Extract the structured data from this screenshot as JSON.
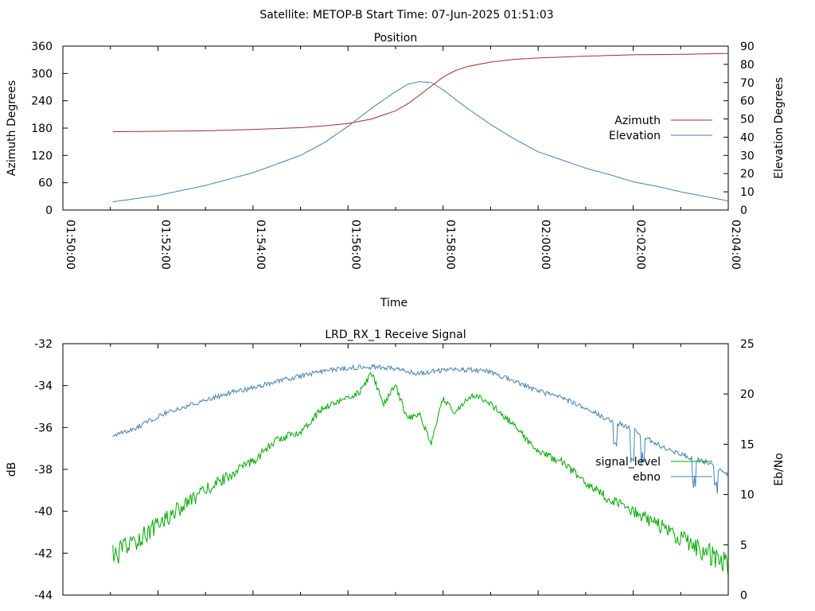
{
  "suptitle": "Satellite: METOP-B    Start Time: 07-Jun-2025 01:51:03",
  "colors": {
    "azimuth": "#a52a2a",
    "elevation": "#4682b4",
    "signal_level": "#00aa00",
    "ebno": "#4682b4"
  },
  "chart_data": [
    {
      "type": "line",
      "title": "Position",
      "xlabel": "Time",
      "ylabel": "Azimuth Degrees",
      "y2label": "Elevation Degrees",
      "xlim": [
        "01:50:00",
        "02:04:00"
      ],
      "ylim": [
        0,
        360
      ],
      "y2lim": [
        0,
        90
      ],
      "xticks": [
        "01:50:00",
        "01:52:00",
        "01:54:00",
        "01:56:00",
        "01:58:00",
        "02:00:00",
        "02:02:00",
        "02:04:00"
      ],
      "yticks": [
        "0",
        "60",
        "120",
        "180",
        "240",
        "300",
        "360"
      ],
      "y2ticks": [
        "0",
        "10",
        "20",
        "30",
        "40",
        "50",
        "60",
        "70",
        "80",
        "90"
      ],
      "grid": false,
      "legend": "right",
      "series": [
        {
          "name": "Azimuth",
          "axis": "left",
          "color": "#a52a2a",
          "x": [
            "01:51:03",
            "01:52:00",
            "01:53:00",
            "01:54:00",
            "01:55:00",
            "01:55:30",
            "01:56:00",
            "01:56:30",
            "01:57:00",
            "01:57:15",
            "01:57:30",
            "01:57:45",
            "01:58:00",
            "01:58:15",
            "01:58:30",
            "01:59:00",
            "01:59:30",
            "02:00:00",
            "02:01:00",
            "02:02:00",
            "02:03:00",
            "02:04:00"
          ],
          "y": [
            172,
            173,
            174,
            177,
            181,
            185,
            190,
            200,
            218,
            233,
            252,
            272,
            292,
            306,
            315,
            325,
            331,
            334,
            338,
            341,
            342,
            344
          ]
        },
        {
          "name": "Elevation",
          "axis": "right",
          "color": "#4682b4",
          "x": [
            "01:51:03",
            "01:52:00",
            "01:53:00",
            "01:54:00",
            "01:55:00",
            "01:55:30",
            "01:56:00",
            "01:56:30",
            "01:57:00",
            "01:57:15",
            "01:57:30",
            "01:57:45",
            "01:58:00",
            "01:58:30",
            "01:59:00",
            "01:59:30",
            "02:00:00",
            "02:00:30",
            "02:01:00",
            "02:01:30",
            "02:02:00",
            "02:02:30",
            "02:03:00",
            "02:03:30",
            "02:04:00"
          ],
          "y": [
            4.5,
            8,
            13.5,
            20.5,
            30,
            37,
            46,
            56,
            65,
            69,
            70.5,
            70,
            66,
            56,
            47,
            39,
            32,
            27.5,
            23,
            19.5,
            15.5,
            13,
            10,
            7.5,
            5
          ]
        }
      ]
    },
    {
      "type": "line",
      "title": "LRD_RX_1 Receive Signal",
      "ylabel": "dB",
      "y2label": "Eb/No",
      "xlim": [
        "01:50:00",
        "02:04:00"
      ],
      "ylim": [
        -44,
        -32
      ],
      "y2lim": [
        0,
        25
      ],
      "yticks": [
        "-44",
        "-42",
        "-40",
        "-38",
        "-36",
        "-34",
        "-32"
      ],
      "y2ticks": [
        "0",
        "5",
        "10",
        "15",
        "20",
        "25"
      ],
      "grid": false,
      "legend": "right",
      "series": [
        {
          "name": "signal_level",
          "axis": "left",
          "color": "#00aa00",
          "x": [
            "01:51:03",
            "01:51:30",
            "01:52:00",
            "01:52:30",
            "01:53:00",
            "01:53:30",
            "01:54:00",
            "01:54:30",
            "01:55:00",
            "01:55:30",
            "01:56:00",
            "01:56:15",
            "01:56:30",
            "01:56:45",
            "01:57:00",
            "01:57:15",
            "01:57:30",
            "01:57:45",
            "01:58:00",
            "01:58:15",
            "01:58:30",
            "01:58:45",
            "01:59:00",
            "01:59:30",
            "02:00:00",
            "02:00:30",
            "02:01:00",
            "02:01:30",
            "02:02:00",
            "02:02:30",
            "02:03:00",
            "02:03:30",
            "02:04:00"
          ],
          "y": [
            -42.2,
            -41.5,
            -40.6,
            -39.8,
            -39.0,
            -38.3,
            -37.6,
            -36.6,
            -36.2,
            -35.0,
            -34.6,
            -34.3,
            -33.4,
            -34.9,
            -34.0,
            -35.6,
            -35.3,
            -36.8,
            -34.6,
            -35.3,
            -34.6,
            -34.5,
            -34.9,
            -35.9,
            -37.2,
            -37.6,
            -38.7,
            -39.4,
            -40.0,
            -40.6,
            -41.3,
            -41.9,
            -42.6
          ]
        },
        {
          "name": "ebno",
          "axis": "right",
          "color": "#4682b4",
          "x": [
            "01:51:03",
            "01:51:30",
            "01:52:00",
            "01:52:30",
            "01:53:00",
            "01:53:30",
            "01:54:00",
            "01:54:30",
            "01:55:00",
            "01:55:30",
            "01:56:00",
            "01:56:30",
            "01:57:00",
            "01:57:30",
            "01:58:00",
            "01:58:30",
            "01:59:00",
            "01:59:30",
            "02:00:00",
            "02:00:30",
            "02:01:00",
            "02:01:30",
            "02:02:00",
            "02:02:30",
            "02:03:00",
            "02:03:30",
            "02:04:00"
          ],
          "y": [
            15.8,
            16.5,
            17.8,
            18.6,
            19.4,
            20.1,
            20.6,
            21.3,
            21.8,
            22.3,
            22.6,
            22.7,
            22.5,
            22.0,
            22.4,
            22.4,
            22.2,
            21.3,
            20.3,
            19.6,
            18.6,
            17.4,
            16.5,
            15.0,
            14.0,
            13.3,
            12.0
          ]
        }
      ]
    }
  ]
}
